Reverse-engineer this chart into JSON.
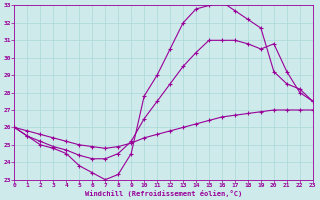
{
  "xlabel": "Windchill (Refroidissement éolien,°C)",
  "bg_color": "#ceeaea",
  "line_color": "#990099",
  "grid_color": "#aad8d8",
  "xlim": [
    0,
    23
  ],
  "ylim": [
    23,
    33
  ],
  "xticks": [
    0,
    1,
    2,
    3,
    4,
    5,
    6,
    7,
    8,
    9,
    10,
    11,
    12,
    13,
    14,
    15,
    16,
    17,
    18,
    19,
    20,
    21,
    22,
    23
  ],
  "yticks": [
    23,
    24,
    25,
    26,
    27,
    28,
    29,
    30,
    31,
    32,
    33
  ],
  "curve1_x": [
    0,
    1,
    2,
    3,
    4,
    5,
    6,
    7,
    8,
    9,
    10,
    11,
    12,
    13,
    14,
    15,
    16,
    17,
    18,
    19,
    20,
    21,
    22,
    23
  ],
  "curve1_y": [
    26.0,
    25.8,
    25.6,
    25.4,
    25.2,
    25.0,
    24.9,
    24.8,
    24.9,
    25.1,
    25.4,
    25.6,
    25.8,
    26.0,
    26.2,
    26.4,
    26.6,
    26.7,
    26.8,
    26.9,
    27.0,
    27.0,
    27.0,
    27.0
  ],
  "curve2_x": [
    0,
    1,
    2,
    3,
    4,
    5,
    6,
    7,
    8,
    9,
    10,
    11,
    12,
    13,
    14,
    15,
    16,
    17,
    18,
    19,
    20,
    21,
    22,
    23
  ],
  "curve2_y": [
    26.0,
    25.5,
    25.2,
    24.9,
    24.7,
    24.4,
    24.2,
    24.2,
    24.5,
    25.2,
    26.5,
    27.5,
    28.5,
    29.5,
    30.3,
    31.0,
    31.0,
    31.0,
    30.8,
    30.5,
    30.8,
    29.2,
    28.0,
    27.5
  ],
  "curve3_x": [
    0,
    1,
    2,
    3,
    4,
    5,
    6,
    7,
    8,
    9,
    10,
    11,
    12,
    13,
    14,
    15,
    16,
    17,
    18,
    19,
    20,
    21,
    22,
    23
  ],
  "curve3_y": [
    26.0,
    25.5,
    25.0,
    24.8,
    24.5,
    23.8,
    23.4,
    23.0,
    23.3,
    24.5,
    27.8,
    29.0,
    30.5,
    32.0,
    32.8,
    33.0,
    33.2,
    32.7,
    32.2,
    31.7,
    29.2,
    28.5,
    28.2,
    27.5
  ]
}
